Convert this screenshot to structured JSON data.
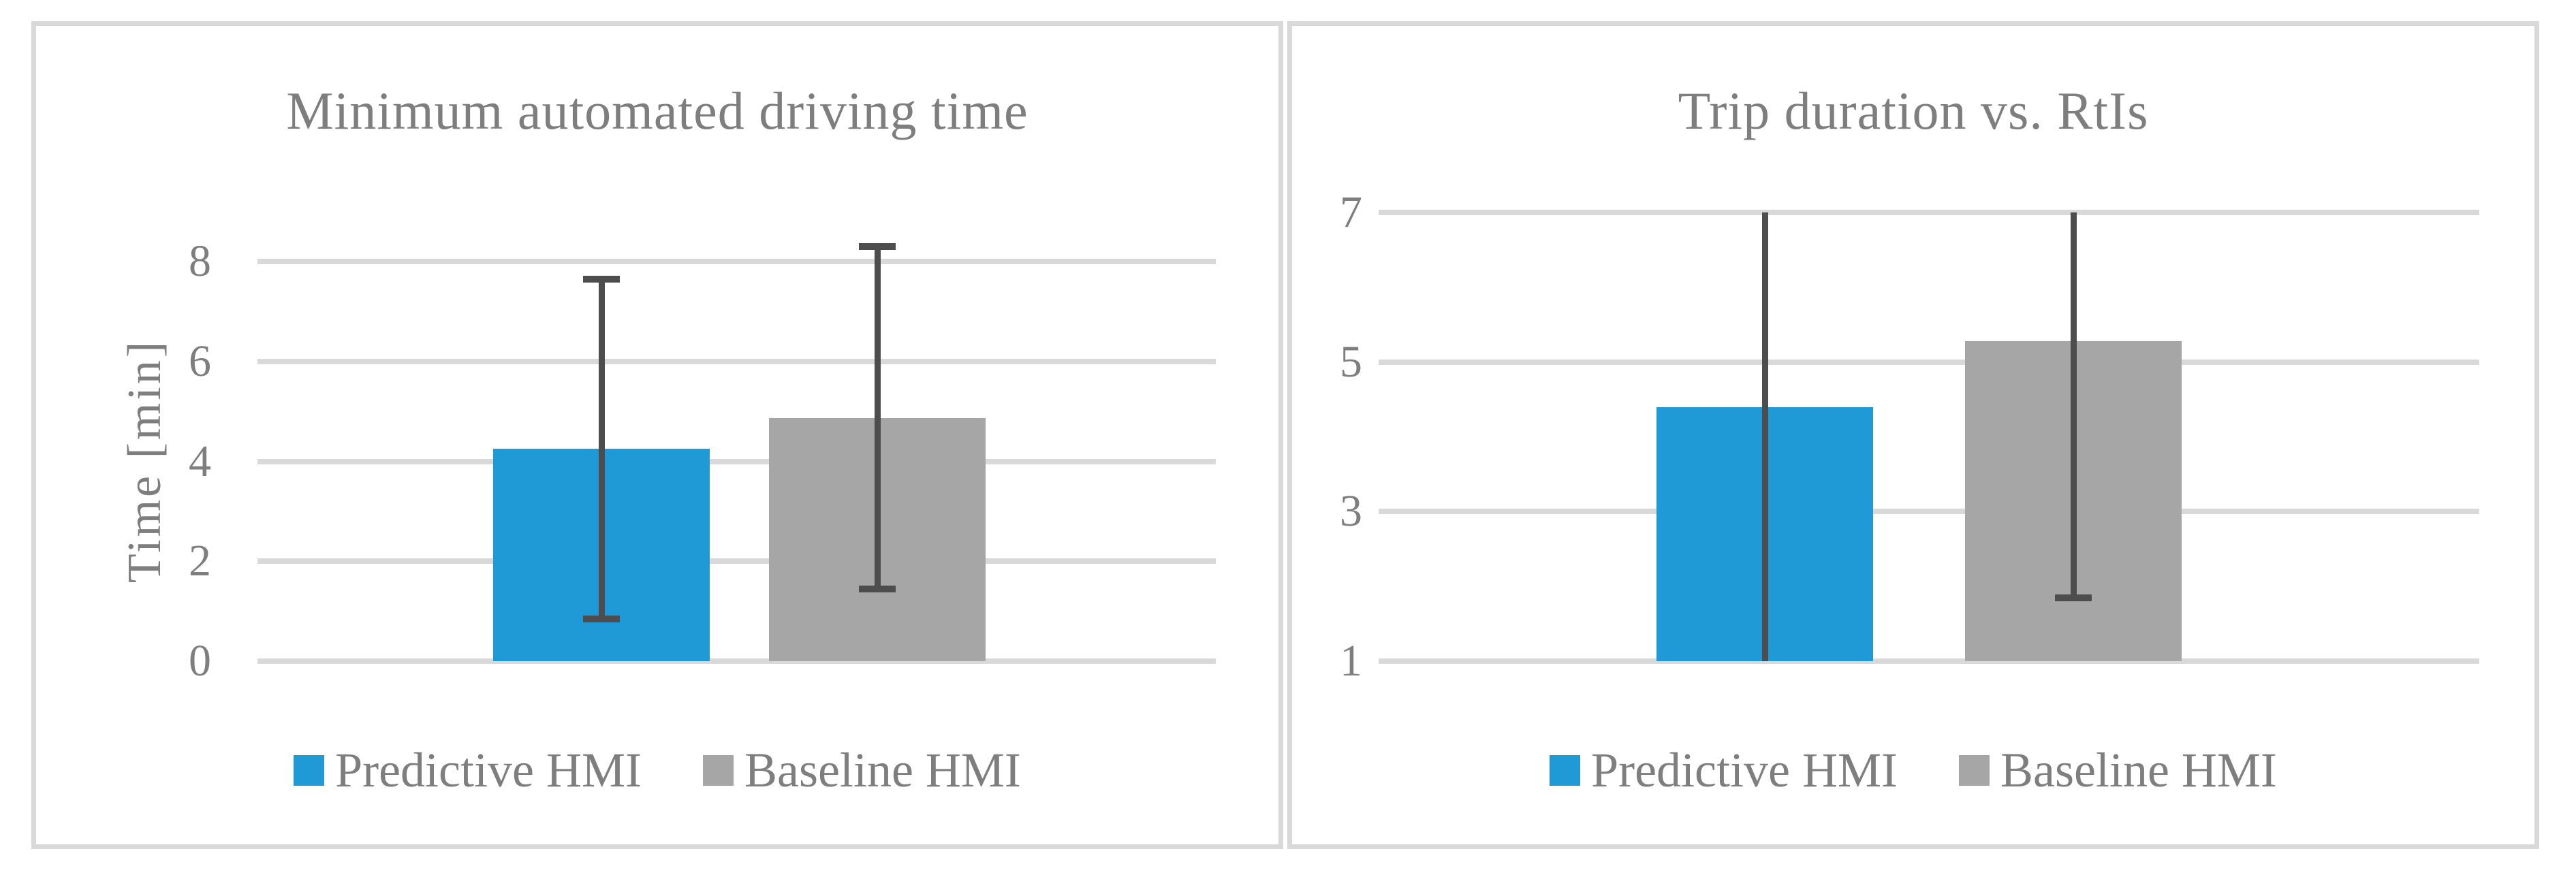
{
  "colors": {
    "predictive_blue": "#209AD6",
    "baseline_gray": "#A6A6A6",
    "error_bar": "#4D4D4D",
    "gridline": "#D9D9D9",
    "panel_border": "#D9D9D9",
    "text_gray": "#7E7E7E",
    "background": "#FFFFFF"
  },
  "chart_data": [
    {
      "type": "bar",
      "title": "Minimum automated driving time",
      "ylabel": "Time [min]",
      "xlabel": "",
      "ylim": [
        0,
        8
      ],
      "yticks": [
        0,
        2,
        4,
        6,
        8
      ],
      "grid": true,
      "legend_position": "bottom",
      "categories": [
        ""
      ],
      "series": [
        {
          "name": "Predictive HMI",
          "value": 4.25,
          "color": "#209AD6",
          "error_low": 0.85,
          "error_high": 7.65,
          "cap_low": true,
          "cap_high": true
        },
        {
          "name": "Baseline HMI",
          "value": 4.87,
          "color": "#A6A6A6",
          "error_low": 1.45,
          "error_high": 8.3,
          "cap_low": true,
          "cap_high": true
        }
      ]
    },
    {
      "type": "bar",
      "title": "Trip duration vs. RtIs",
      "ylabel": "",
      "xlabel": "",
      "ylim": [
        1,
        7
      ],
      "yticks": [
        1,
        3,
        5,
        7
      ],
      "grid": true,
      "legend_position": "bottom",
      "categories": [
        ""
      ],
      "series": [
        {
          "name": "Predictive HMI",
          "value": 4.4,
          "color": "#209AD6",
          "error_low": 1.0,
          "error_high": 7.0,
          "cap_low": false,
          "cap_high": false
        },
        {
          "name": "Baseline HMI",
          "value": 5.28,
          "color": "#A6A6A6",
          "error_low": 1.85,
          "error_high": 7.0,
          "cap_low": true,
          "cap_high": false
        }
      ]
    }
  ]
}
